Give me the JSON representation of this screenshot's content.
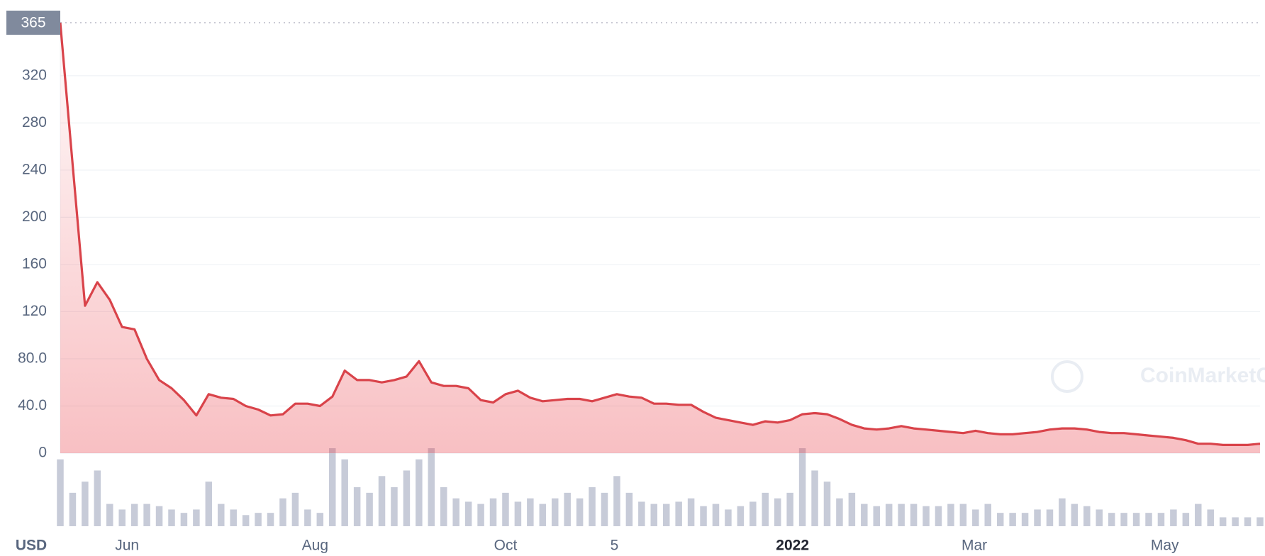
{
  "chart_data": {
    "type": "line",
    "currency_label": "USD",
    "watermark": "CoinMarketCap",
    "reference_line": 365,
    "color": "#d9434a",
    "volume_color": "#c7cbd8",
    "grid": true,
    "ylim": [
      0,
      365
    ],
    "yticks": [
      0,
      {
        "value": 40,
        "label": "40.0"
      },
      {
        "value": 80,
        "label": "80.0"
      },
      120,
      160,
      200,
      240,
      280,
      320
    ],
    "xlim": [
      0,
      97
    ],
    "xticks": [
      {
        "value": 5.4,
        "label": "Jun"
      },
      {
        "value": 20.6,
        "label": "Aug"
      },
      {
        "value": 36,
        "label": "Oct"
      },
      {
        "value": 44.8,
        "label": "5"
      },
      {
        "value": 59.2,
        "label": "2022"
      },
      {
        "value": 73.9,
        "label": "Mar"
      },
      {
        "value": 89.3,
        "label": "May"
      }
    ],
    "series": [
      {
        "name": "Price",
        "values": [
          365,
          245,
          125,
          145,
          130,
          107,
          105,
          80,
          62,
          55,
          45,
          32,
          50,
          47,
          46,
          40,
          37,
          32,
          33,
          42,
          42,
          40,
          48,
          70,
          62,
          62,
          60,
          62,
          65,
          78,
          60,
          57,
          57,
          55,
          45,
          43,
          50,
          53,
          47,
          44,
          45,
          46,
          46,
          44,
          47,
          50,
          48,
          47,
          42,
          42,
          41,
          41,
          35,
          30,
          28,
          26,
          24,
          27,
          26,
          28,
          33,
          34,
          33,
          29,
          24,
          21,
          20,
          21,
          23,
          21,
          20,
          19,
          18,
          17,
          19,
          17,
          16,
          16,
          17,
          18,
          20,
          21,
          21,
          20,
          18,
          17,
          17,
          16,
          15,
          14,
          13,
          11,
          8,
          8,
          7,
          7,
          7,
          8
        ]
      },
      {
        "name": "Volume",
        "values": [
          60,
          30,
          40,
          50,
          20,
          15,
          20,
          20,
          18,
          15,
          12,
          15,
          40,
          20,
          15,
          10,
          12,
          12,
          25,
          30,
          15,
          12,
          70,
          60,
          35,
          30,
          45,
          35,
          50,
          60,
          70,
          35,
          25,
          22,
          20,
          25,
          30,
          22,
          25,
          20,
          25,
          30,
          25,
          35,
          30,
          45,
          30,
          22,
          20,
          20,
          22,
          25,
          18,
          20,
          15,
          18,
          22,
          30,
          25,
          30,
          70,
          50,
          40,
          25,
          30,
          20,
          18,
          20,
          20,
          20,
          18,
          18,
          20,
          20,
          15,
          20,
          12,
          12,
          12,
          15,
          15,
          25,
          20,
          18,
          15,
          12,
          12,
          12,
          12,
          12,
          15,
          12,
          20,
          15,
          8,
          8,
          8,
          8
        ]
      }
    ]
  }
}
